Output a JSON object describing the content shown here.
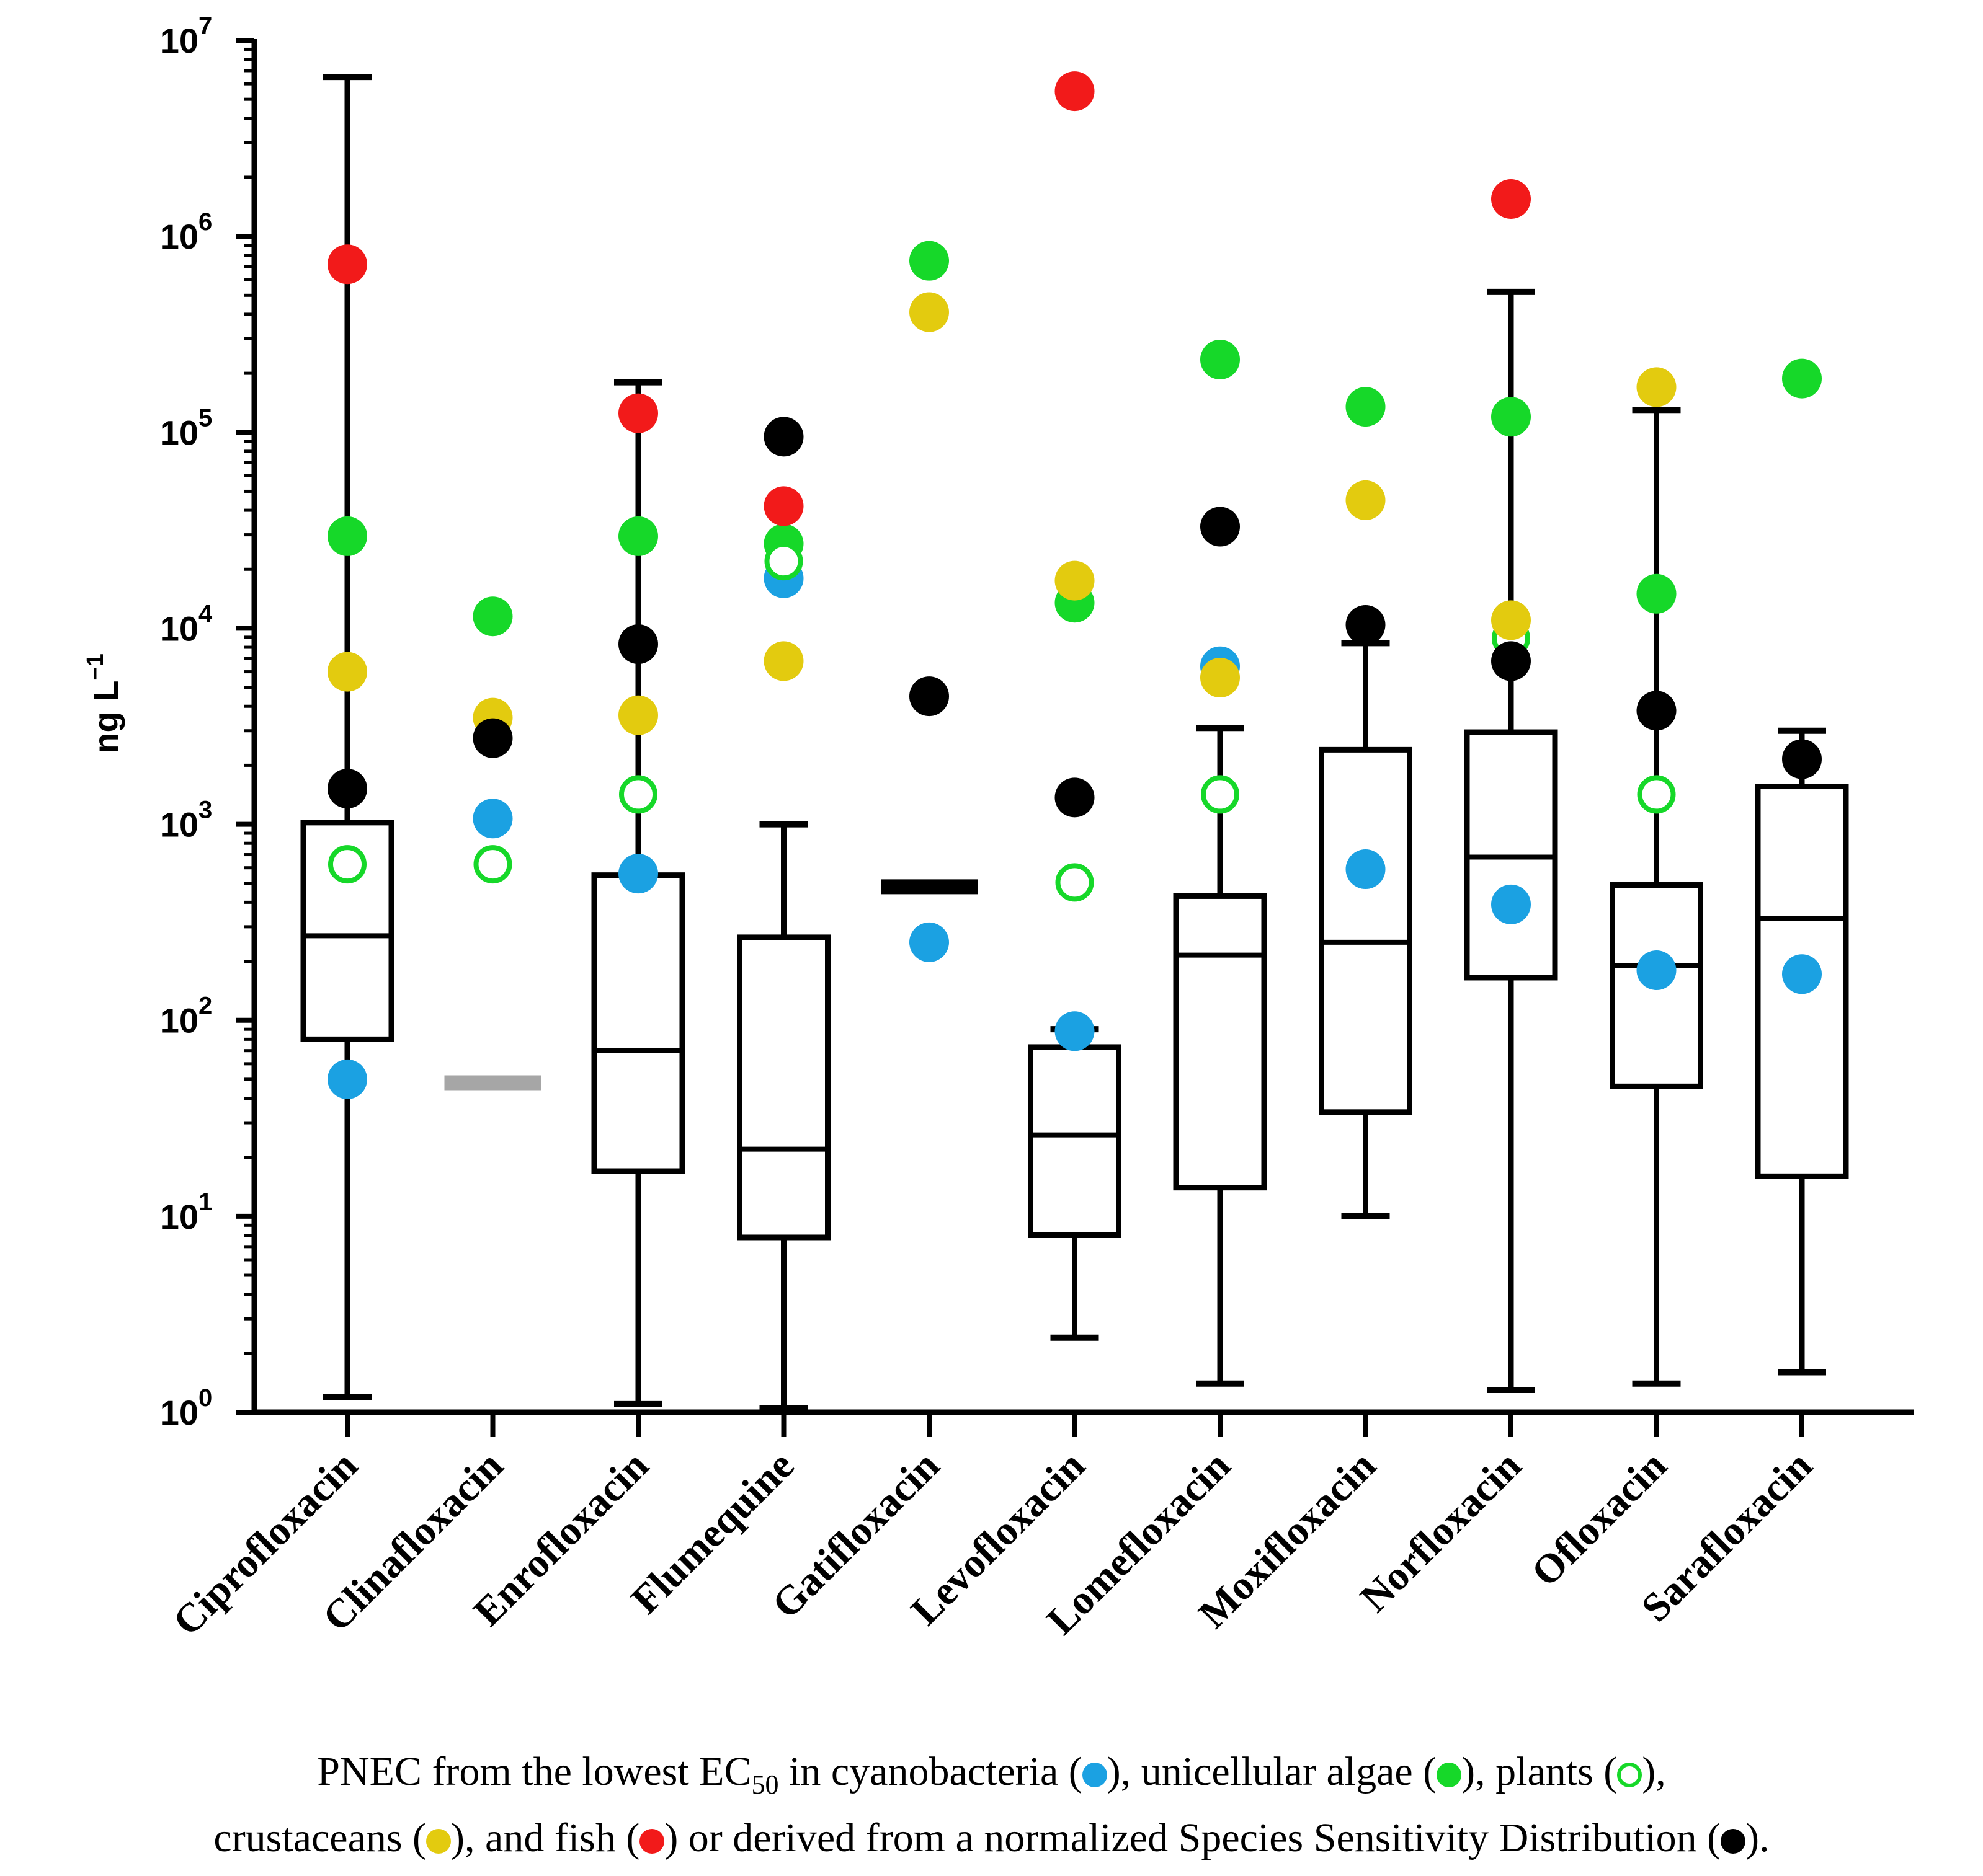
{
  "chart_data": {
    "type": "box",
    "ylabel": "ng L",
    "ylabel_sup": "−1",
    "yscale": "log",
    "ylim": [
      1,
      10000000
    ],
    "yticks": [
      {
        "base": "10",
        "exp": "0",
        "value": 1
      },
      {
        "base": "10",
        "exp": "1",
        "value": 10
      },
      {
        "base": "10",
        "exp": "2",
        "value": 100
      },
      {
        "base": "10",
        "exp": "3",
        "value": 1000
      },
      {
        "base": "10",
        "exp": "4",
        "value": 10000
      },
      {
        "base": "10",
        "exp": "5",
        "value": 100000
      },
      {
        "base": "10",
        "exp": "6",
        "value": 1000000
      },
      {
        "base": "10",
        "exp": "7",
        "value": 10000000
      }
    ],
    "categories": [
      "Ciprofloxacin",
      "Clinafloxacin",
      "Enrofloxacin",
      "Flumequine",
      "Gatifloxacin",
      "Levofloxacin",
      "Lomefloxacin",
      "Moxifloxacin",
      "Norfloxacin",
      "Ofloxacin",
      "Sarafloxacin"
    ],
    "boxes": [
      {
        "whisker_low": 1.2,
        "q1": 80,
        "median": 270,
        "q3": 1020,
        "whisker_high": 6500000
      },
      {
        "median": 48,
        "median_color": "#a6a6a6"
      },
      {
        "whisker_low": 1.1,
        "q1": 17,
        "median": 70,
        "q3": 550,
        "whisker_high": 180000
      },
      {
        "whisker_low": 1.05,
        "q1": 7.8,
        "median": 22,
        "q3": 265,
        "whisker_high": 1000
      },
      {
        "median": 480,
        "median_color": "#000000"
      },
      {
        "whisker_low": 2.4,
        "q1": 8,
        "median": 26,
        "q3": 73,
        "whisker_high": 90
      },
      {
        "whisker_low": 1.4,
        "q1": 14,
        "median": 215,
        "q3": 430,
        "whisker_high": 3100
      },
      {
        "whisker_low": 10,
        "q1": 34,
        "median": 250,
        "q3": 2400,
        "whisker_high": 8400
      },
      {
        "whisker_low": 1.3,
        "q1": 165,
        "median": 680,
        "q3": 2950,
        "whisker_high": 520000
      },
      {
        "whisker_low": 1.4,
        "q1": 46,
        "median": 190,
        "q3": 490,
        "whisker_high": 130000
      },
      {
        "whisker_low": 1.6,
        "q1": 16,
        "median": 330,
        "q3": 1560,
        "whisker_high": 3000
      }
    ],
    "series": [
      {
        "key": "cyanobacteria",
        "color": "#1ba1e2",
        "filled": true,
        "points": [
          {
            "x": "Ciprofloxacin",
            "y": 50
          },
          {
            "x": "Clinafloxacin",
            "y": 1070
          },
          {
            "x": "Enrofloxacin",
            "y": 560
          },
          {
            "x": "Flumequine",
            "y": 18000
          },
          {
            "x": "Gatifloxacin",
            "y": 250
          },
          {
            "x": "Levofloxacin",
            "y": 88
          },
          {
            "x": "Lomefloxacin",
            "y": 6400
          },
          {
            "x": "Moxifloxacin",
            "y": 590
          },
          {
            "x": "Norfloxacin",
            "y": 390
          },
          {
            "x": "Ofloxacin",
            "y": 180
          },
          {
            "x": "Sarafloxacin",
            "y": 172
          }
        ]
      },
      {
        "key": "unicellular algae",
        "color": "#16d829",
        "filled": true,
        "points": [
          {
            "x": "Ciprofloxacin",
            "y": 29500
          },
          {
            "x": "Clinafloxacin",
            "y": 11500
          },
          {
            "x": "Enrofloxacin",
            "y": 29500
          },
          {
            "x": "Flumequine",
            "y": 27000
          },
          {
            "x": "Gatifloxacin",
            "y": 750000
          },
          {
            "x": "Levofloxacin",
            "y": 13500
          },
          {
            "x": "Lomefloxacin",
            "y": 235000
          },
          {
            "x": "Moxifloxacin",
            "y": 135000
          },
          {
            "x": "Norfloxacin",
            "y": 120000
          },
          {
            "x": "Ofloxacin",
            "y": 15000
          },
          {
            "x": "Sarafloxacin",
            "y": 188000
          }
        ]
      },
      {
        "key": "plants",
        "color": "#16d829",
        "filled": false,
        "points": [
          {
            "x": "Ciprofloxacin",
            "y": 625
          },
          {
            "x": "Clinafloxacin",
            "y": 625
          },
          {
            "x": "Enrofloxacin",
            "y": 1420
          },
          {
            "x": "Flumequine",
            "y": 22000
          },
          {
            "x": "Levofloxacin",
            "y": 505
          },
          {
            "x": "Lomefloxacin",
            "y": 1420
          },
          {
            "x": "Norfloxacin",
            "y": 8900
          },
          {
            "x": "Ofloxacin",
            "y": 1420
          }
        ]
      },
      {
        "key": "crustaceans",
        "color": "#e3cb0f",
        "filled": true,
        "points": [
          {
            "x": "Ciprofloxacin",
            "y": 6000
          },
          {
            "x": "Clinafloxacin",
            "y": 3500
          },
          {
            "x": "Enrofloxacin",
            "y": 3600
          },
          {
            "x": "Flumequine",
            "y": 6800
          },
          {
            "x": "Gatifloxacin",
            "y": 410000
          },
          {
            "x": "Levofloxacin",
            "y": 17500
          },
          {
            "x": "Lomefloxacin",
            "y": 5600
          },
          {
            "x": "Moxifloxacin",
            "y": 45000
          },
          {
            "x": "Norfloxacin",
            "y": 11000
          },
          {
            "x": "Ofloxacin",
            "y": 170000
          }
        ]
      },
      {
        "key": "fish",
        "color": "#f21a1a",
        "filled": true,
        "points": [
          {
            "x": "Ciprofloxacin",
            "y": 720000
          },
          {
            "x": "Enrofloxacin",
            "y": 125000
          },
          {
            "x": "Flumequine",
            "y": 42000
          },
          {
            "x": "Levofloxacin",
            "y": 5500000
          },
          {
            "x": "Norfloxacin",
            "y": 1550000
          }
        ]
      },
      {
        "key": "ssd",
        "color": "#000000",
        "filled": true,
        "points": [
          {
            "x": "Ciprofloxacin",
            "y": 1520
          },
          {
            "x": "Clinafloxacin",
            "y": 2750
          },
          {
            "x": "Enrofloxacin",
            "y": 8300
          },
          {
            "x": "Flumequine",
            "y": 95000
          },
          {
            "x": "Gatifloxacin",
            "y": 4500
          },
          {
            "x": "Levofloxacin",
            "y": 1370
          },
          {
            "x": "Lomefloxacin",
            "y": 33000
          },
          {
            "x": "Moxifloxacin",
            "y": 10400
          },
          {
            "x": "Norfloxacin",
            "y": 6800
          },
          {
            "x": "Ofloxacin",
            "y": 3800
          },
          {
            "x": "Sarafloxacin",
            "y": 2150
          }
        ]
      }
    ],
    "legend_placement": "bottom"
  },
  "caption": {
    "line1_a": "PNEC from the lowest EC",
    "line1_sub": "50",
    "line1_b": " in cyanobacteria (",
    "line1_c": "), unicellular algae (",
    "line1_d": "), plants (",
    "line1_e": "),",
    "line2_a": "crustaceans (",
    "line2_b": "), and fish (",
    "line2_c": ") or derived from a normalized Species Sensitivity Distribution (",
    "line2_d": ")."
  },
  "colors": {
    "cyanobacteria": "#1ba1e2",
    "algae": "#16d829",
    "plants": "#16d829",
    "crustaceans": "#e3cb0f",
    "fish": "#f21a1a",
    "ssd": "#000000"
  }
}
